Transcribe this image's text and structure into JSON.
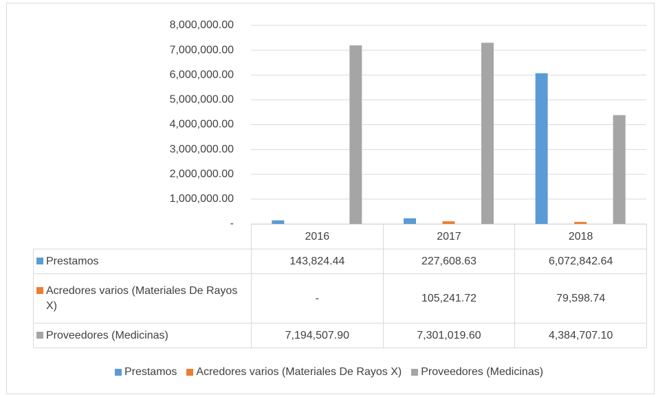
{
  "chart_data": {
    "type": "bar",
    "categories": [
      "2016",
      "2017",
      "2018"
    ],
    "series": [
      {
        "name": "Prestamos",
        "color": "#5b9bd5",
        "values": [
          143824.44,
          227608.63,
          6072842.64
        ],
        "value_labels": [
          "143,824.44",
          "227,608.63",
          "6,072,842.64"
        ]
      },
      {
        "name": "Acredores varios (Materiales De Rayos X)",
        "color": "#ed7d31",
        "values": [
          0,
          105241.72,
          79598.74
        ],
        "value_labels": [
          "-",
          "105,241.72",
          "79,598.74"
        ]
      },
      {
        "name": "Proveedores (Medicinas)",
        "color": "#a5a5a5",
        "values": [
          7194507.9,
          7301019.6,
          4384707.1
        ],
        "value_labels": [
          "7,194,507.90",
          "7,301,019.60",
          "4,384,707.10"
        ]
      }
    ],
    "ylim": [
      0,
      8000000
    ],
    "yticks": [
      {
        "value": 0,
        "label": "-"
      },
      {
        "value": 1000000,
        "label": "1,000,000.00"
      },
      {
        "value": 2000000,
        "label": "2,000,000.00"
      },
      {
        "value": 3000000,
        "label": "3,000,000.00"
      },
      {
        "value": 4000000,
        "label": "4,000,000.00"
      },
      {
        "value": 5000000,
        "label": "5,000,000.00"
      },
      {
        "value": 6000000,
        "label": "6,000,000.00"
      },
      {
        "value": 7000000,
        "label": "7,000,000.00"
      },
      {
        "value": 8000000,
        "label": "8,000,000.00"
      }
    ],
    "grid": true,
    "legend": "bottom",
    "data_table": true
  }
}
